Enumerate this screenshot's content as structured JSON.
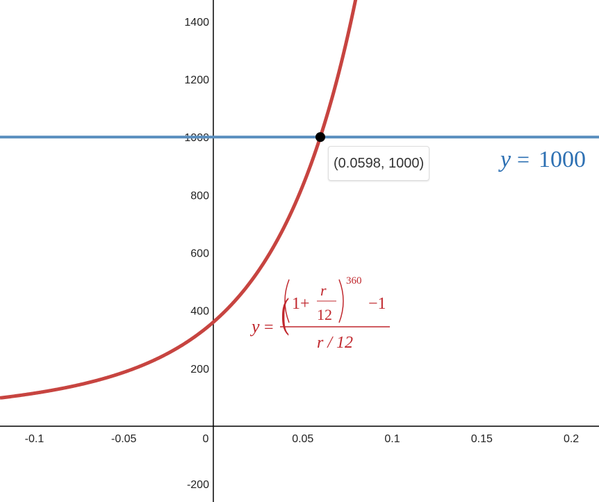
{
  "chart_data": {
    "type": "line",
    "title": "",
    "xlabel": "",
    "ylabel": "",
    "xlim": [
      -0.1192,
      0.2155
    ],
    "ylim": [
      -262,
      1474
    ],
    "grid": false,
    "x_ticks": [
      -0.1,
      -0.05,
      0,
      0.05,
      0.1,
      0.15,
      0.2
    ],
    "x_tick_labels": [
      "-0.1",
      "-0.05",
      "0",
      "0.05",
      "0.1",
      "0.15",
      "0.2"
    ],
    "y_ticks": [
      -200,
      200,
      400,
      600,
      800,
      1000,
      1200,
      1400
    ],
    "y_tick_labels": [
      "-200",
      "200",
      "400",
      "600",
      "800",
      "1000",
      "1200",
      "1400"
    ],
    "series": [
      {
        "expression": "y = ((1 + r/12)^360 - 1) / (r/12)",
        "color": "#c74440",
        "kind": "function",
        "periods_per_year": 12,
        "n": 360
      },
      {
        "expression": "y = 1000",
        "color": "#2d70b3",
        "line_color": "#5b8fbf",
        "kind": "horizontal",
        "value": 1000
      }
    ],
    "intersection": {
      "x": 0.0598,
      "y": 1000,
      "label": "(0.0598, 1000)"
    }
  },
  "labels": {
    "curve": {
      "y": "y",
      "eq": "=",
      "one_plus": "1+",
      "r": "r",
      "twelve": "12",
      "exponent": "360",
      "minus_one": "−1",
      "denominator": "r / 12"
    },
    "line": {
      "y": "y",
      "eq": "=",
      "value": "1000"
    }
  },
  "colors": {
    "curve": "#c74440",
    "line": "#5b8fbf",
    "line_label": "#2d70b3",
    "axis": "#000000",
    "point": "#000000"
  }
}
